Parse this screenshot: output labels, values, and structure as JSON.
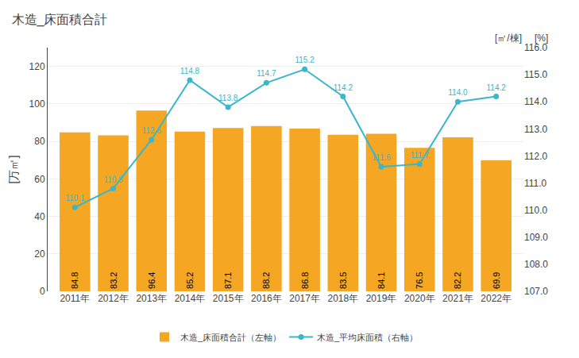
{
  "chart_data": {
    "type": "bar",
    "title": "木造_床面積合計",
    "categories": [
      "2011年",
      "2012年",
      "2013年",
      "2014年",
      "2015年",
      "2016年",
      "2017年",
      "2018年",
      "2019年",
      "2020年",
      "2021年",
      "2022年"
    ],
    "series": [
      {
        "name": "木造_床面積合計（左軸）",
        "type": "bar",
        "color": "#f5a623",
        "values": [
          84.8,
          83.2,
          96.4,
          85.2,
          87.1,
          88.2,
          86.8,
          83.5,
          84.1,
          76.5,
          82.2,
          69.9
        ]
      },
      {
        "name": "木造_平均床面積（右軸）",
        "type": "line",
        "axis": "y2",
        "color": "#3cb6c9",
        "marker": "circle",
        "values": [
          110.1,
          110.8,
          112.6,
          114.8,
          113.8,
          114.7,
          115.2,
          114.2,
          111.6,
          111.7,
          114.0,
          114.2
        ],
        "value_labels": [
          "110.1",
          "110.8",
          "112.6",
          "114.8",
          "113.8",
          "114.7",
          "115.2",
          "114.2",
          "111.6",
          "111.7",
          "114.0",
          "114.2"
        ]
      }
    ],
    "ylabel": "[万㎡]",
    "y2label": "[㎡/棟]",
    "annotations": [
      "[%]"
    ],
    "ylim": [
      0,
      130
    ],
    "yticks": [
      0,
      20,
      40,
      60,
      80,
      100,
      120
    ],
    "y2lim": [
      107.0,
      116.0
    ],
    "y2ticks": [
      {
        "value": 107,
        "label": "107.0"
      },
      {
        "value": 108,
        "label": "108.0"
      },
      {
        "value": 109,
        "label": "109.0"
      },
      {
        "value": 110,
        "label": "110.0"
      },
      {
        "value": 111,
        "label": "111.0"
      },
      {
        "value": 112,
        "label": "112.0"
      },
      {
        "value": 113,
        "label": "113.0"
      },
      {
        "value": 114,
        "label": "114.0"
      },
      {
        "value": 115,
        "label": "115.0"
      },
      {
        "value": 116,
        "label": "116.0"
      }
    ],
    "grid": true,
    "data_labels": true,
    "legend": "bottom"
  }
}
